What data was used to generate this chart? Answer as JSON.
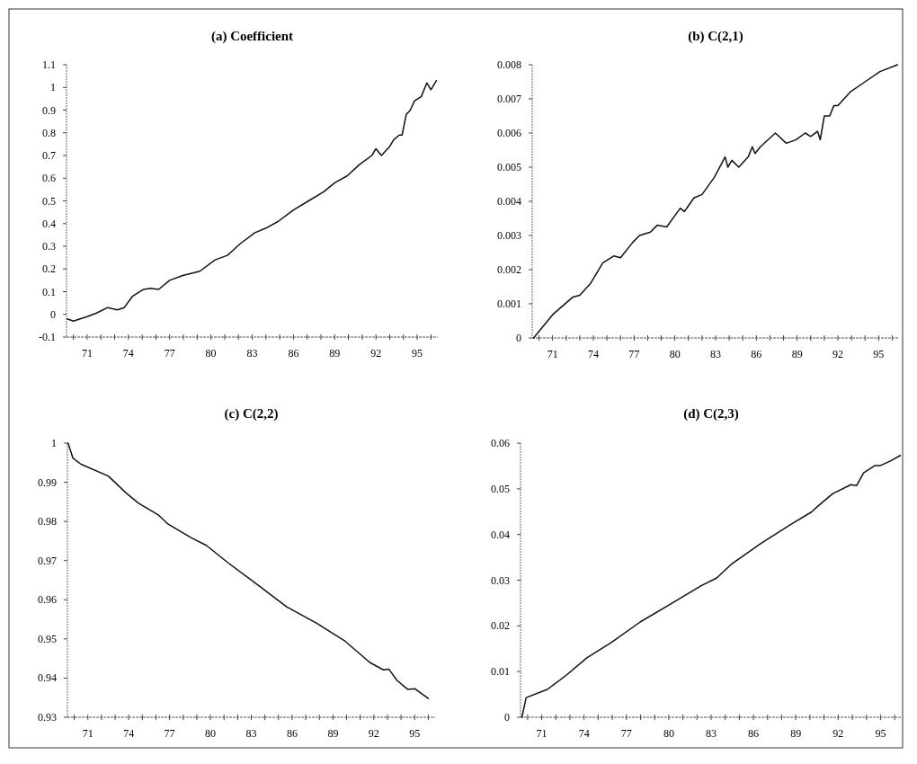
{
  "chart_data": [
    {
      "type": "line",
      "title": "(a) Coefficient",
      "xlim": [
        69.5,
        96.5
      ],
      "xticks": [
        {
          "value": 70,
          "label": null
        },
        71,
        {
          "value": 72,
          "label": null
        },
        {
          "value": 73,
          "label": null
        },
        74,
        {
          "value": 75,
          "label": null
        },
        {
          "value": 76,
          "label": null
        },
        77,
        {
          "value": 78,
          "label": null
        },
        {
          "value": 79,
          "label": null
        },
        80,
        {
          "value": 81,
          "label": null
        },
        {
          "value": 82,
          "label": null
        },
        83,
        {
          "value": 84,
          "label": null
        },
        {
          "value": 85,
          "label": null
        },
        86,
        {
          "value": 87,
          "label": null
        },
        {
          "value": 88,
          "label": null
        },
        89,
        {
          "value": 90,
          "label": null
        },
        {
          "value": 91,
          "label": null
        },
        92,
        {
          "value": 93,
          "label": null
        },
        {
          "value": 94,
          "label": null
        },
        95,
        {
          "value": 96,
          "label": null
        }
      ],
      "ylim": [
        -0.1,
        1.1
      ],
      "yticks": [
        -0.1,
        0,
        0.1,
        0.2,
        0.3,
        0.4,
        0.5,
        0.6,
        0.7,
        0.8,
        0.9,
        1,
        1.1
      ],
      "x": [
        69.55,
        70,
        71,
        71.65,
        72.5,
        73.2,
        73.7,
        74.3,
        75.1,
        75.6,
        76.2,
        77,
        77.9,
        79.2,
        80.3,
        81.2,
        82.1,
        83.2,
        84,
        84.9,
        86,
        87.1,
        88.2,
        89,
        89.9,
        90.8,
        91.7,
        92,
        92.4,
        93,
        93.3,
        93.7,
        93.9,
        94.2,
        94.5,
        94.8,
        95.3,
        95.7,
        96,
        96.4
      ],
      "series": [
        {
          "color": "#111111",
          "values": [
            -0.02,
            -0.03,
            -0.01,
            0.005,
            0.03,
            0.02,
            0.03,
            0.08,
            0.11,
            0.115,
            0.11,
            0.15,
            0.17,
            0.19,
            0.24,
            0.26,
            0.31,
            0.36,
            0.38,
            0.41,
            0.46,
            0.5,
            0.54,
            0.58,
            0.61,
            0.66,
            0.7,
            0.73,
            0.7,
            0.74,
            0.77,
            0.79,
            0.79,
            0.88,
            0.9,
            0.94,
            0.96,
            1.02,
            0.99,
            1.03
          ]
        }
      ]
    },
    {
      "type": "line",
      "title": "(b) C(2,1)",
      "xlim": [
        69.5,
        96.5
      ],
      "xticks": [
        {
          "value": 70,
          "label": null
        },
        71,
        {
          "value": 72,
          "label": null
        },
        {
          "value": 73,
          "label": null
        },
        74,
        {
          "value": 75,
          "label": null
        },
        {
          "value": 76,
          "label": null
        },
        77,
        {
          "value": 78,
          "label": null
        },
        {
          "value": 79,
          "label": null
        },
        80,
        {
          "value": 81,
          "label": null
        },
        {
          "value": 82,
          "label": null
        },
        83,
        {
          "value": 84,
          "label": null
        },
        {
          "value": 85,
          "label": null
        },
        86,
        {
          "value": 87,
          "label": null
        },
        {
          "value": 88,
          "label": null
        },
        89,
        {
          "value": 90,
          "label": null
        },
        {
          "value": 91,
          "label": null
        },
        92,
        {
          "value": 93,
          "label": null
        },
        {
          "value": 94,
          "label": null
        },
        95,
        {
          "value": 96,
          "label": null
        }
      ],
      "ylim": [
        0,
        0.008
      ],
      "yticks": [
        0,
        0.001,
        0.002,
        0.003,
        0.004,
        0.005,
        0.006,
        0.007,
        0.008
      ],
      "x": [
        69.6,
        71,
        72.5,
        73,
        73.8,
        74.7,
        75.5,
        76,
        76.9,
        77.4,
        78.2,
        78.7,
        79.4,
        80.4,
        80.7,
        81.4,
        82,
        82.9,
        83.7,
        83.9,
        84.2,
        84.7,
        85.4,
        85.7,
        85.9,
        86.3,
        87.4,
        88.2,
        88.9,
        89.6,
        90,
        90.5,
        90.7,
        91,
        91.4,
        91.7,
        92,
        92.9,
        94,
        95.1,
        96.4
      ],
      "series": [
        {
          "color": "#111111",
          "values": [
            0,
            0.00068,
            0.0012,
            0.00125,
            0.0016,
            0.0022,
            0.0024,
            0.00235,
            0.0028,
            0.003,
            0.0031,
            0.0033,
            0.00325,
            0.0038,
            0.0037,
            0.0041,
            0.0042,
            0.0047,
            0.0053,
            0.005,
            0.0052,
            0.005,
            0.0053,
            0.0056,
            0.0054,
            0.0056,
            0.006,
            0.0057,
            0.0058,
            0.006,
            0.0059,
            0.00605,
            0.0058,
            0.0065,
            0.0065,
            0.0068,
            0.0068,
            0.0072,
            0.0075,
            0.0078,
            0.008
          ]
        }
      ]
    },
    {
      "type": "line",
      "title": "(c) C(2,2)",
      "xlim": [
        69.5,
        96.5
      ],
      "xticks": [
        {
          "value": 70,
          "label": null
        },
        71,
        {
          "value": 72,
          "label": null
        },
        {
          "value": 73,
          "label": null
        },
        74,
        {
          "value": 75,
          "label": null
        },
        {
          "value": 76,
          "label": null
        },
        77,
        {
          "value": 78,
          "label": null
        },
        {
          "value": 79,
          "label": null
        },
        80,
        {
          "value": 81,
          "label": null
        },
        {
          "value": 82,
          "label": null
        },
        83,
        {
          "value": 84,
          "label": null
        },
        {
          "value": 85,
          "label": null
        },
        86,
        {
          "value": 87,
          "label": null
        },
        {
          "value": 88,
          "label": null
        },
        89,
        {
          "value": 90,
          "label": null
        },
        {
          "value": 91,
          "label": null
        },
        92,
        {
          "value": 93,
          "label": null
        },
        {
          "value": 94,
          "label": null
        },
        95,
        {
          "value": 96,
          "label": null
        }
      ],
      "ylim": [
        0.93,
        1
      ],
      "yticks": [
        0.93,
        0.94,
        0.95,
        0.96,
        0.97,
        0.98,
        0.99,
        1
      ],
      "x": [
        69.55,
        69.9,
        70.5,
        72.5,
        73.8,
        74.7,
        76.2,
        76.9,
        78.6,
        79.7,
        81.2,
        83.4,
        85.6,
        87.8,
        89.9,
        91.7,
        92.7,
        93.1,
        93.7,
        94.5,
        95,
        96
      ],
      "series": [
        {
          "color": "#111111",
          "values": [
            1,
            0.9962,
            0.9946,
            0.9916,
            0.9873,
            0.9847,
            0.9816,
            0.9793,
            0.9758,
            0.9739,
            0.9697,
            0.964,
            0.9582,
            0.954,
            0.9494,
            0.944,
            0.9421,
            0.9423,
            0.9394,
            0.9371,
            0.9373,
            0.9348
          ]
        }
      ]
    },
    {
      "type": "line",
      "title": "(d) C(2,3)",
      "xlim": [
        69.5,
        96.5
      ],
      "xticks": [
        {
          "value": 70,
          "label": null
        },
        71,
        {
          "value": 72,
          "label": null
        },
        {
          "value": 73,
          "label": null
        },
        74,
        {
          "value": 75,
          "label": null
        },
        {
          "value": 76,
          "label": null
        },
        77,
        {
          "value": 78,
          "label": null
        },
        {
          "value": 79,
          "label": null
        },
        80,
        {
          "value": 81,
          "label": null
        },
        {
          "value": 82,
          "label": null
        },
        83,
        {
          "value": 84,
          "label": null
        },
        {
          "value": 85,
          "label": null
        },
        86,
        {
          "value": 87,
          "label": null
        },
        {
          "value": 88,
          "label": null
        },
        89,
        {
          "value": 90,
          "label": null
        },
        {
          "value": 91,
          "label": null
        },
        92,
        {
          "value": 93,
          "label": null
        },
        {
          "value": 94,
          "label": null
        },
        95,
        {
          "value": 96,
          "label": null
        }
      ],
      "ylim": [
        0,
        0.06
      ],
      "yticks": [
        0,
        0.01,
        0.02,
        0.03,
        0.04,
        0.05,
        0.06
      ],
      "x": [
        69.6,
        69.9,
        71.4,
        72.7,
        74.2,
        75.9,
        78,
        80.2,
        82.3,
        83.4,
        84.4,
        86.5,
        88.7,
        90.1,
        90.6,
        91.6,
        92.9,
        93.3,
        93.8,
        94.6,
        95,
        95.7,
        96.4
      ],
      "series": [
        {
          "color": "#111111",
          "values": [
            0,
            0.0043,
            0.0061,
            0.0091,
            0.013,
            0.0163,
            0.0209,
            0.0249,
            0.0288,
            0.0305,
            0.0334,
            0.038,
            0.0423,
            0.0449,
            0.0463,
            0.0489,
            0.0509,
            0.0507,
            0.0535,
            0.0551,
            0.0551,
            0.0561,
            0.0573
          ]
        }
      ]
    }
  ]
}
